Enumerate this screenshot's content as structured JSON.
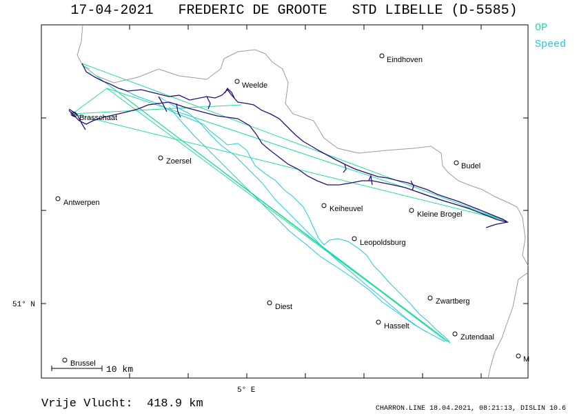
{
  "header": {
    "date": "17-04-2021",
    "pilot": "FREDERIC DE GROOTE",
    "glider": "STD LIBELLE (D-5585)"
  },
  "legend": {
    "op": "OP",
    "speed": "Speed",
    "op_color": "#22dd99",
    "speed_color": "#1ec8e6",
    "track_color": "#2a0a7a"
  },
  "axes": {
    "lat_label": "51° N",
    "lon_label": "5° E"
  },
  "scale_bar": {
    "label": "10 km"
  },
  "towns": [
    {
      "name": "Eindhoven"
    },
    {
      "name": "Weelde"
    },
    {
      "name": "Brasschaat"
    },
    {
      "name": "Zoersel"
    },
    {
      "name": "Budel"
    },
    {
      "name": "Antwerpen"
    },
    {
      "name": "Keiheuvel"
    },
    {
      "name": "Kleine Brogel"
    },
    {
      "name": "Leopoldsburg"
    },
    {
      "name": "Zwartberg"
    },
    {
      "name": "Diest"
    },
    {
      "name": "Hasselt"
    },
    {
      "name": "Zutendaal"
    },
    {
      "name": "Brussel"
    },
    {
      "name": "M"
    }
  ],
  "summary": {
    "label": "Vrije Vlucht:",
    "distance": "418.9 km"
  },
  "footer": {
    "text": "CHARRON.LINE 18.04.2021, 08:21:13, DISLIN 10.6"
  }
}
